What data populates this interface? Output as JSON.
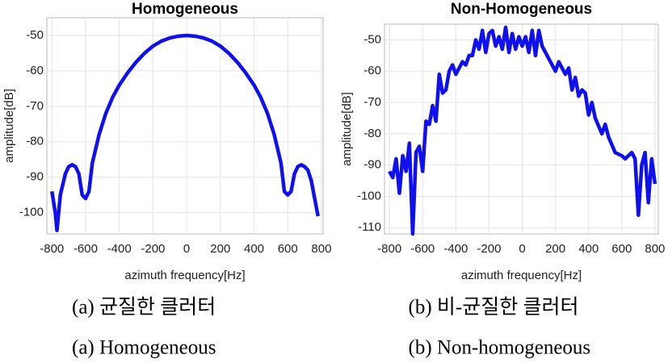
{
  "chart_data": [
    {
      "type": "line",
      "title": "Homogeneous",
      "xlabel": "azimuth frequency[Hz]",
      "ylabel": "amplitude[dB]",
      "captions": [
        "(a) 균질한 클러터",
        "(a) Homogeneous"
      ],
      "x": [
        -800,
        -780,
        -770,
        -750,
        -720,
        -700,
        -680,
        -660,
        -640,
        -620,
        -600,
        -580,
        -560,
        -520,
        -480,
        -440,
        -400,
        -350,
        -300,
        -250,
        -200,
        -150,
        -100,
        -50,
        0,
        50,
        100,
        150,
        200,
        250,
        300,
        350,
        400,
        440,
        480,
        520,
        560,
        580,
        600,
        620,
        640,
        660,
        680,
        700,
        720,
        740,
        760,
        780
      ],
      "values": [
        -94,
        -100,
        -105,
        -95,
        -89,
        -87,
        -86.5,
        -87,
        -89,
        -95,
        -96,
        -94,
        -86,
        -78,
        -72,
        -67.5,
        -64,
        -60.5,
        -57.5,
        -55,
        -53,
        -51.6,
        -50.7,
        -50.2,
        -50,
        -50.2,
        -50.7,
        -51.6,
        -53,
        -55,
        -57.5,
        -60.5,
        -64,
        -67.5,
        -72,
        -78,
        -86,
        -94,
        -95,
        -94,
        -89,
        -87,
        -86.5,
        -87,
        -88,
        -91,
        -96,
        -101
      ],
      "color": "#1010ee",
      "xlim": [
        -830,
        810
      ],
      "ylim": [
        -106,
        -45
      ],
      "xticks": [
        -800,
        -600,
        -400,
        -200,
        0,
        200,
        400,
        600,
        800
      ],
      "yticks": [
        -100,
        -90,
        -80,
        -70,
        -60,
        -50
      ],
      "grid": true
    },
    {
      "type": "line",
      "title": "Non-Homogeneous",
      "xlabel": "azimuth frequency[Hz]",
      "ylabel": "amplitude[dB]",
      "captions": [
        "(b) 비-균질한 클러터",
        "(b) Non-homogeneous"
      ],
      "x": [
        -800,
        -780,
        -760,
        -740,
        -720,
        -700,
        -680,
        -660,
        -640,
        -620,
        -600,
        -580,
        -560,
        -540,
        -520,
        -500,
        -480,
        -460,
        -440,
        -420,
        -400,
        -380,
        -360,
        -340,
        -320,
        -300,
        -280,
        -260,
        -240,
        -220,
        -200,
        -180,
        -160,
        -140,
        -120,
        -100,
        -80,
        -60,
        -40,
        -20,
        0,
        20,
        40,
        60,
        80,
        100,
        120,
        140,
        160,
        200,
        220,
        240,
        260,
        280,
        300,
        320,
        340,
        360,
        380,
        400,
        420,
        440,
        480,
        500,
        520,
        560,
        600,
        620,
        660,
        680,
        700,
        720,
        740,
        760,
        780,
        800
      ],
      "values": [
        -92,
        -94,
        -88,
        -99,
        -87,
        -92,
        -83,
        -112,
        -86,
        -84,
        -92,
        -76,
        -77,
        -71,
        -76,
        -61,
        -67,
        -66,
        -60,
        -58,
        -61,
        -59,
        -57,
        -58,
        -55,
        -55,
        -50,
        -53,
        -47,
        -54,
        -48,
        -47,
        -52,
        -49,
        -53,
        -46,
        -54,
        -48,
        -53,
        -49,
        -52,
        -49,
        -54,
        -47,
        -55,
        -47,
        -52,
        -54,
        -56,
        -60,
        -57,
        -59,
        -61,
        -59,
        -66,
        -62,
        -68,
        -66,
        -67,
        -74,
        -70,
        -75,
        -80,
        -77,
        -81,
        -86,
        -87,
        -88,
        -86,
        -88,
        -106,
        -90,
        -86,
        -102,
        -88,
        -96
      ],
      "color": "#1010ee",
      "xlim": [
        -830,
        820
      ],
      "ylim": [
        -112,
        -45
      ],
      "xticks": [
        -800,
        -600,
        -400,
        -200,
        0,
        200,
        400,
        600,
        800
      ],
      "yticks": [
        -110,
        -100,
        -90,
        -80,
        -70,
        -60,
        -50
      ],
      "grid": true
    }
  ]
}
